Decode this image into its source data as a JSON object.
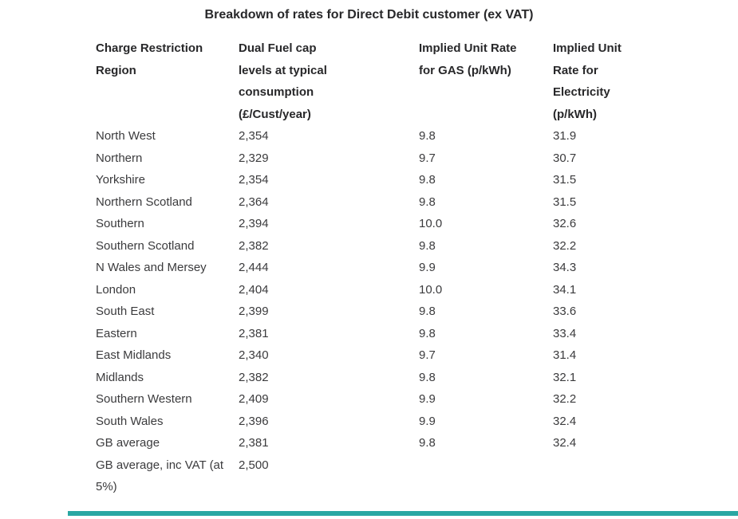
{
  "title": "Breakdown of rates for Direct Debit customer (ex VAT)",
  "table": {
    "columns": [
      {
        "id": "region",
        "header_lines": [
          "Charge Restriction",
          "Region"
        ]
      },
      {
        "id": "cap",
        "header_lines": [
          "Dual Fuel cap",
          "levels at typical",
          "consumption",
          "(£/Cust/year)"
        ]
      },
      {
        "id": "gas",
        "header_lines": [
          "Implied Unit Rate",
          "for GAS (p/kWh)"
        ]
      },
      {
        "id": "elec",
        "header_lines": [
          "Implied Unit",
          "Rate for",
          "Electricity",
          "(p/kWh)"
        ]
      }
    ],
    "rows": [
      {
        "region_lines": [
          "North West"
        ],
        "cap": "2,354",
        "gas": "9.8",
        "elec": "31.9"
      },
      {
        "region_lines": [
          "Northern"
        ],
        "cap": "2,329",
        "gas": "9.7",
        "elec": "30.7"
      },
      {
        "region_lines": [
          "Yorkshire"
        ],
        "cap": "2,354",
        "gas": "9.8",
        "elec": "31.5"
      },
      {
        "region_lines": [
          "Northern Scotland"
        ],
        "cap": "2,364",
        "gas": "9.8",
        "elec": "31.5"
      },
      {
        "region_lines": [
          "Southern"
        ],
        "cap": "2,394",
        "gas": "10.0",
        "elec": "32.6"
      },
      {
        "region_lines": [
          "Southern Scotland"
        ],
        "cap": "2,382",
        "gas": "9.8",
        "elec": "32.2"
      },
      {
        "region_lines": [
          "N Wales and Mersey"
        ],
        "cap": "2,444",
        "gas": "9.9",
        "elec": "34.3"
      },
      {
        "region_lines": [
          "London"
        ],
        "cap": "2,404",
        "gas": "10.0",
        "elec": "34.1"
      },
      {
        "region_lines": [
          "South East"
        ],
        "cap": "2,399",
        "gas": "9.8",
        "elec": "33.6"
      },
      {
        "region_lines": [
          "Eastern"
        ],
        "cap": "2,381",
        "gas": "9.8",
        "elec": "33.4"
      },
      {
        "region_lines": [
          "East Midlands"
        ],
        "cap": "2,340",
        "gas": "9.7",
        "elec": "31.4"
      },
      {
        "region_lines": [
          "Midlands"
        ],
        "cap": "2,382",
        "gas": "9.8",
        "elec": "32.1"
      },
      {
        "region_lines": [
          "Southern Western"
        ],
        "cap": "2,409",
        "gas": "9.9",
        "elec": "32.2"
      },
      {
        "region_lines": [
          "South Wales"
        ],
        "cap": "2,396",
        "gas": "9.9",
        "elec": "32.4"
      },
      {
        "region_lines": [
          "GB average"
        ],
        "cap": "2,381",
        "gas": "9.8",
        "elec": "32.4"
      },
      {
        "region_lines": [
          "GB average, inc VAT (at",
          "5%)"
        ],
        "cap": "2,500",
        "gas": "",
        "elec": ""
      }
    ]
  },
  "ui": {
    "accent_bar_color": "#2aa7a3",
    "text_color": "#3b3b3d",
    "heading_color": "#28282a"
  }
}
